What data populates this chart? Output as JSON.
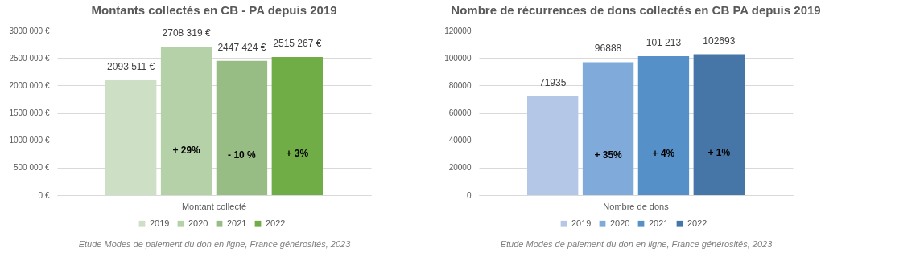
{
  "chart_data": [
    {
      "type": "bar",
      "title": "Montants collectés en CB - PA depuis 2019",
      "categories": [
        "Montant collecté"
      ],
      "ylim": [
        0,
        3000000
      ],
      "yticks": [
        {
          "value": 0,
          "label": "0 €"
        },
        {
          "value": 500000,
          "label": "500 000 €"
        },
        {
          "value": 1000000,
          "label": "1000 000 €"
        },
        {
          "value": 1500000,
          "label": "1500 000 €"
        },
        {
          "value": 2000000,
          "label": "2000 000 €"
        },
        {
          "value": 2500000,
          "label": "2500 000 €"
        },
        {
          "value": 3000000,
          "label": "3000 000 €"
        }
      ],
      "grid": "y",
      "legend": "bottom",
      "series": [
        {
          "name": "2019",
          "color": "#cddfc5",
          "values": [
            2093511
          ],
          "value_labels": [
            "2093 511 €"
          ]
        },
        {
          "name": "2020",
          "color": "#b5d1a7",
          "values": [
            2708319
          ],
          "value_labels": [
            "2708 319 €"
          ]
        },
        {
          "name": "2021",
          "color": "#97bd85",
          "values": [
            2447424
          ],
          "value_labels": [
            "2447 424 €"
          ]
        },
        {
          "name": "2022",
          "color": "#70ad47",
          "values": [
            2515267
          ],
          "value_labels": [
            "2515 267 €"
          ]
        }
      ],
      "annotations": [
        "+ 29%",
        "- 10 %",
        "+ 3%",
        "Etude Modes de paiement du don en ligne, France générosités, 2023"
      ]
    },
    {
      "type": "bar",
      "title": "Nombre de récurrences de dons collectés en CB PA depuis 2019",
      "categories": [
        "Nombre de dons"
      ],
      "ylim": [
        0,
        120000
      ],
      "yticks": [
        0,
        20000,
        40000,
        60000,
        80000,
        100000,
        120000
      ],
      "grid": "y",
      "legend": "bottom",
      "series": [
        {
          "name": "2019",
          "color": "#b4c7e7",
          "values": [
            71935
          ],
          "value_labels": [
            "71935"
          ]
        },
        {
          "name": "2020",
          "color": "#7faad9",
          "values": [
            96888
          ],
          "value_labels": [
            "96888"
          ]
        },
        {
          "name": "2021",
          "color": "#5590c8",
          "values": [
            101213
          ],
          "value_labels": [
            "101 213"
          ]
        },
        {
          "name": "2022",
          "color": "#4676a8",
          "values": [
            102693
          ],
          "value_labels": [
            "102693"
          ]
        }
      ],
      "annotations": [
        "+ 35%",
        "+ 4%",
        "+ 1%",
        "Etude Modes de paiement du don en ligne, France générosités, 2023"
      ]
    }
  ]
}
